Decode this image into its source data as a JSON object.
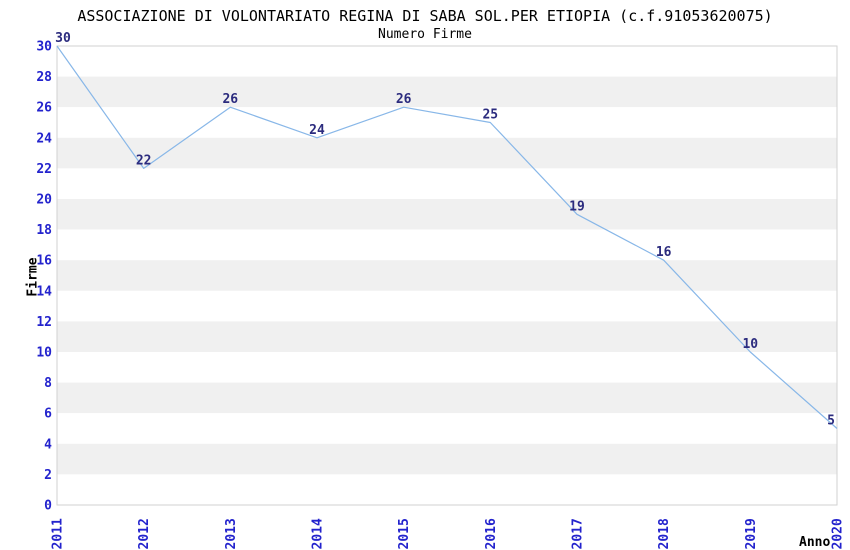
{
  "page": {
    "title": "ASSOCIAZIONE DI VOLONTARIATO REGINA DI SABA SOL.PER ETIOPIA (c.f.91053620075)",
    "subtitle": "Numero Firme"
  },
  "chart_data": {
    "type": "line",
    "title": "ASSOCIAZIONE DI VOLONTARIATO REGINA DI SABA SOL.PER ETIOPIA (c.f.91053620075)",
    "subtitle": "Numero Firme",
    "xlabel": "Anno",
    "ylabel": "Firme",
    "categories": [
      "2011",
      "2012",
      "2013",
      "2014",
      "2015",
      "2016",
      "2017",
      "2018",
      "2019",
      "2020"
    ],
    "values": [
      30,
      22,
      26,
      24,
      26,
      25,
      19,
      16,
      10,
      5
    ],
    "ylim": [
      0,
      30
    ],
    "ytick_step": 2,
    "grid": "alternating-horizontal-bands",
    "legend": "none",
    "data_labels_shown": true,
    "x_tick_rotation_deg": -90
  },
  "style": {
    "line_color": "#88b7e8",
    "tick_label_color": "#2323cd",
    "data_label_color": "#2b2b7e",
    "band_gray": "#f0f0f0",
    "band_white": "#ffffff",
    "plot_border_color": "#d2d2d2",
    "text_color": "#000000",
    "background": "#ffffff"
  }
}
